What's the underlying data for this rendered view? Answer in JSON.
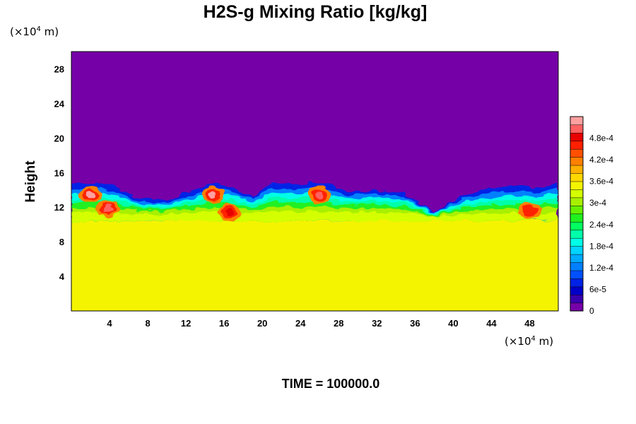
{
  "chart_data": {
    "type": "heatmap",
    "title": "H2S-g Mixing Ratio [kg/kg]",
    "ylabel": "Height",
    "y_unit_prefix": "(×10",
    "y_unit_exp": "4",
    "y_unit_suffix": " m)",
    "x_unit_prefix": "(×10",
    "x_unit_exp": "4",
    "x_unit_suffix": " m)",
    "xlim": [
      0,
      51
    ],
    "ylim": [
      0,
      30
    ],
    "x_ticks": [
      4,
      8,
      12,
      16,
      20,
      24,
      28,
      32,
      36,
      40,
      44,
      48
    ],
    "x_tick_labels": [
      "4",
      "8",
      "12",
      "16",
      "20",
      "24",
      "28",
      "32",
      "36",
      "40",
      "44",
      "48"
    ],
    "y_ticks": [
      4,
      8,
      12,
      16,
      20,
      24,
      28
    ],
    "y_tick_labels": [
      "4",
      "8",
      "12",
      "16",
      "20",
      "24",
      "28"
    ],
    "colorbar": {
      "range": [
        0,
        0.00054
      ],
      "tick_values": [
        0,
        6e-05,
        0.00012,
        0.00018,
        0.00024,
        0.0003,
        0.00036,
        0.00042,
        0.00048
      ],
      "tick_labels": [
        "0",
        "6e-5",
        "1.2e-4",
        "1.8e-4",
        "2.4e-4",
        "3e-4",
        "3.6e-4",
        "4.2e-4",
        "4.8e-4"
      ],
      "colors": [
        "#7600a8",
        "#3a00b0",
        "#0000c8",
        "#0022e6",
        "#0050ff",
        "#0080ff",
        "#00aaff",
        "#00d4ff",
        "#00ffe6",
        "#00ffaa",
        "#00ff60",
        "#20f020",
        "#66f000",
        "#a8f000",
        "#d4ff00",
        "#f4f400",
        "#ffd800",
        "#ffb000",
        "#ff8000",
        "#ff5000",
        "#ff2000",
        "#e80000",
        "#ff6060",
        "#ffa0a0"
      ]
    },
    "field_regions": {
      "above_layer_value": 0,
      "below_layer_value": 0.00034,
      "layer_top_height_profile": {
        "x": [
          0,
          3,
          5,
          7,
          10,
          13,
          15,
          17,
          19,
          21,
          23,
          25,
          27,
          29,
          32,
          35,
          37,
          38,
          40,
          43,
          46,
          49,
          51
        ],
        "height": [
          14.6,
          14.8,
          14.2,
          13.0,
          12.8,
          14.0,
          14.8,
          14.2,
          13.2,
          14.8,
          14.6,
          14.8,
          14.6,
          13.8,
          14.0,
          13.6,
          12.2,
          11.4,
          12.8,
          14.0,
          14.4,
          14.2,
          14.8
        ]
      },
      "layer_base_height_profile": {
        "x": [
          0,
          5,
          10,
          15,
          20,
          25,
          30,
          35,
          40,
          45,
          51
        ],
        "height": [
          10.6,
          10.8,
          10.9,
          10.8,
          10.9,
          10.7,
          10.9,
          10.8,
          10.7,
          10.6,
          10.7
        ]
      },
      "maxima_centers": [
        {
          "x": 2.0,
          "y": 13.4,
          "value": 0.00052
        },
        {
          "x": 3.8,
          "y": 11.8,
          "value": 0.0005
        },
        {
          "x": 14.8,
          "y": 13.4,
          "value": 0.00052
        },
        {
          "x": 16.5,
          "y": 11.4,
          "value": 0.00048
        },
        {
          "x": 26.0,
          "y": 13.4,
          "value": 0.0005
        },
        {
          "x": 48.0,
          "y": 11.6,
          "value": 0.00046
        }
      ]
    }
  },
  "time_label": "TIME = 100000.0"
}
